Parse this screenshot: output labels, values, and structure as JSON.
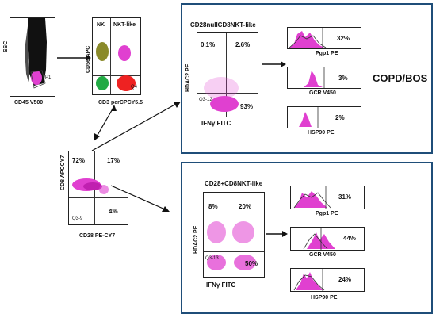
{
  "gating": {
    "ssc_label": "SSC",
    "cd45_label": "CD45 V500",
    "p1_label": "P1",
    "cd56_label": "CD56 APC",
    "cd3_label": "CD3 perCPCY5.5",
    "nk_label": "NK",
    "nktlike_label": "NKT-like",
    "q4_label": "Q4",
    "cd8_label": "CD8 APCCY7",
    "cd28_label": "CD28 PE-CY7",
    "q72": "72%",
    "q17": "17%",
    "q4pct": "4%",
    "q39": "Q3-9"
  },
  "panel_top": {
    "title": "CD28nullCD8NKT-like",
    "ylabel": "HDAC2 PE",
    "xlabel": "IFNγ FITC",
    "ul": "0.1%",
    "ur": "2.6%",
    "lr": "93%",
    "ll_tag": "Q3-12",
    "hists": [
      {
        "label": "Pgp1 PE",
        "pct": "32%"
      },
      {
        "label": "GCR V450",
        "pct": "3%"
      },
      {
        "label": "HSP90 PE",
        "pct": "2%"
      }
    ],
    "side_label": "COPD/BOS"
  },
  "panel_bottom": {
    "title": "CD28+CD8NKT-like",
    "ylabel": "HDAC2 PE",
    "xlabel": "IFNγ FITC",
    "ul": "8%",
    "ur": "20%",
    "lr": "50%",
    "ll_tag": "Q3-13",
    "hists": [
      {
        "label": "Pgp1 PE",
        "pct": "31%"
      },
      {
        "label": "GCR V450",
        "pct": "44%"
      },
      {
        "label": "HSP90 PE",
        "pct": "24%"
      }
    ]
  },
  "colors": {
    "panel_border": "#1f4e79",
    "magenta": "#e040d0",
    "nk_olive": "#8a8a2a",
    "green": "#22aa44",
    "red": "#ee2222"
  }
}
